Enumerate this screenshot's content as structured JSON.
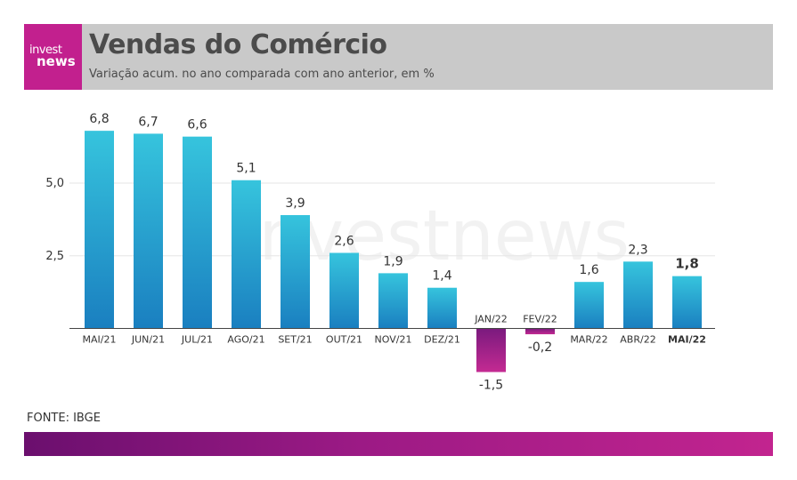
{
  "header": {
    "logo_line1": "invest",
    "logo_line2": "news",
    "title": "Vendas do Comércio",
    "subtitle": "Variação acum. no ano comparada com ano anterior, em %"
  },
  "footer": {
    "source": "FONTE: IBGE"
  },
  "colors": {
    "positive_top": "#36c4dd",
    "positive_bottom": "#1a7fc0",
    "negative_top": "#7a1a7e",
    "negative_bottom": "#c42a92",
    "header_bg": "#c9c9c9",
    "accent": "#c2208e"
  },
  "chart_data": {
    "type": "bar",
    "categories": [
      "MAI/21",
      "JUN/21",
      "JUL/21",
      "AGO/21",
      "SET/21",
      "OUT/21",
      "NOV/21",
      "DEZ/21",
      "JAN/22",
      "FEV/22",
      "MAR/22",
      "ABR/22",
      "MAI/22"
    ],
    "values": [
      6.8,
      6.7,
      6.6,
      5.1,
      3.9,
      2.6,
      1.9,
      1.4,
      -1.5,
      -0.2,
      1.6,
      2.3,
      1.8
    ],
    "value_labels": [
      "6,8",
      "6,7",
      "6,6",
      "5,1",
      "3,9",
      "2,6",
      "1,9",
      "1,4",
      "-1,5",
      "-0,2",
      "1,6",
      "2,3",
      "1,8"
    ],
    "highlight_index": 12,
    "yticks": [
      2.5,
      5.0
    ],
    "ytick_labels": [
      "2,5",
      "5,0"
    ],
    "ylim": [
      -2.5,
      7.5
    ],
    "grid": true,
    "watermark": "investnews"
  }
}
